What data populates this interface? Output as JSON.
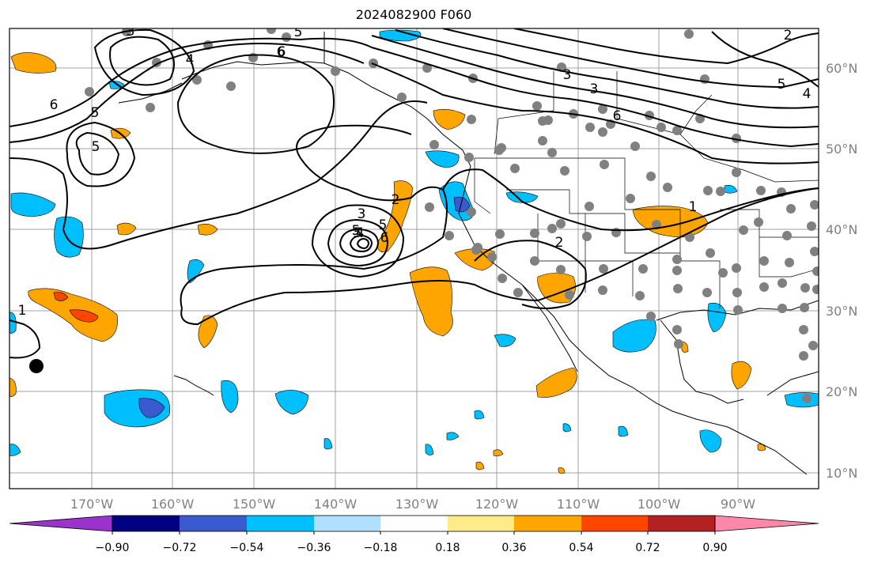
{
  "title": "2024082900 F060",
  "lon_labels": [
    "170°W",
    "160°W",
    "150°W",
    "140°W",
    "130°W",
    "120°W",
    "110°W",
    "100°W",
    "90°W"
  ],
  "lat_labels": [
    "60°N",
    "50°N",
    "40°N",
    "30°N",
    "20°N",
    "10°N"
  ],
  "contour_labels": [
    "6",
    "5",
    "6",
    "5",
    "5",
    "4",
    "3",
    "5",
    "6",
    "2",
    "3",
    "5",
    "6",
    "4",
    "5",
    "3",
    "6",
    "3",
    "5",
    "4",
    "2",
    "1",
    "2",
    "1"
  ],
  "colorbar": {
    "colors": [
      "#9933cc",
      "#000080",
      "#3a5bd0",
      "#00bfff",
      "#b0e0ff",
      "#ffffff",
      "#ffeb8a",
      "#ffa500",
      "#ff4500",
      "#b22222",
      "#ff88aa"
    ],
    "ticks": [
      "−0.90",
      "−0.72",
      "−0.54",
      "−0.36",
      "−0.18",
      "0.18",
      "0.36",
      "0.54",
      "0.72",
      "0.90"
    ]
  },
  "colors": {
    "positive_fill": "#ffa500",
    "strong_positive_fill": "#ff4500",
    "negative_fill": "#00bfff",
    "strong_negative_fill": "#3a5bd0",
    "station_marker": "#808080",
    "contour": "#000000",
    "grid": "#a0a0a0"
  }
}
